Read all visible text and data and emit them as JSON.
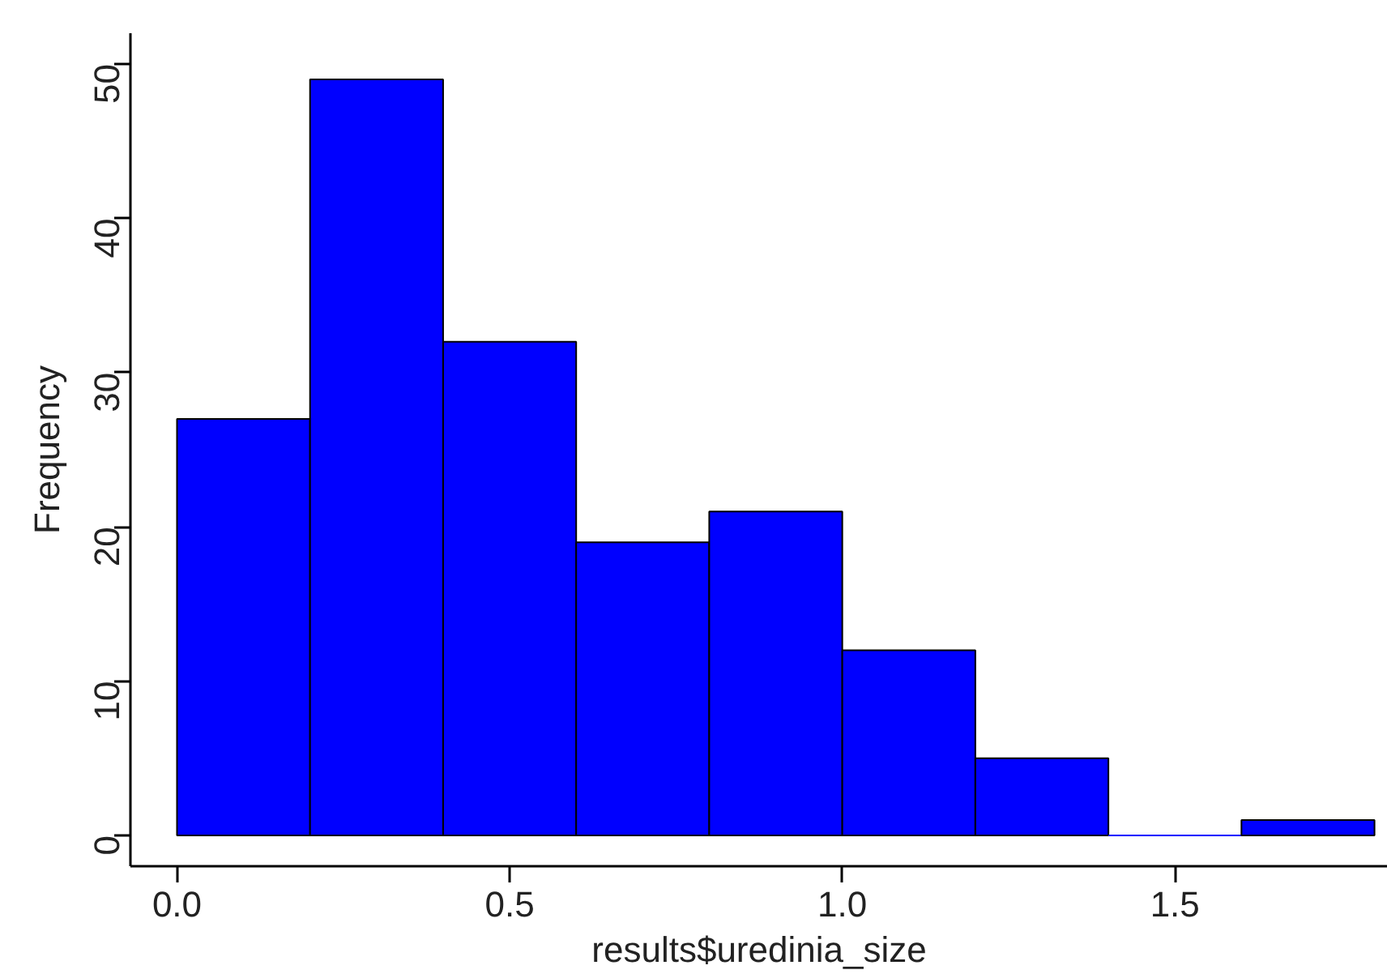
{
  "chart_data": {
    "type": "histogram",
    "xlabel": "results$uredinia_size",
    "ylabel": "Frequency",
    "bins": [
      0,
      0.2,
      0.4,
      0.6,
      0.8,
      1.0,
      1.2,
      1.4,
      1.6,
      1.8
    ],
    "values": [
      27,
      49,
      32,
      19,
      21,
      12,
      5,
      0,
      1
    ],
    "color": "#0000ff",
    "xlim": [
      -0.07,
      1.82
    ],
    "ylim": [
      -2,
      52
    ],
    "xticks": [
      {
        "value": 0,
        "label": "0.0"
      },
      0.5,
      {
        "value": 1,
        "label": "1.0"
      },
      1.5
    ],
    "yticks": [
      0,
      10,
      20,
      30,
      40,
      50
    ],
    "grid": false
  }
}
